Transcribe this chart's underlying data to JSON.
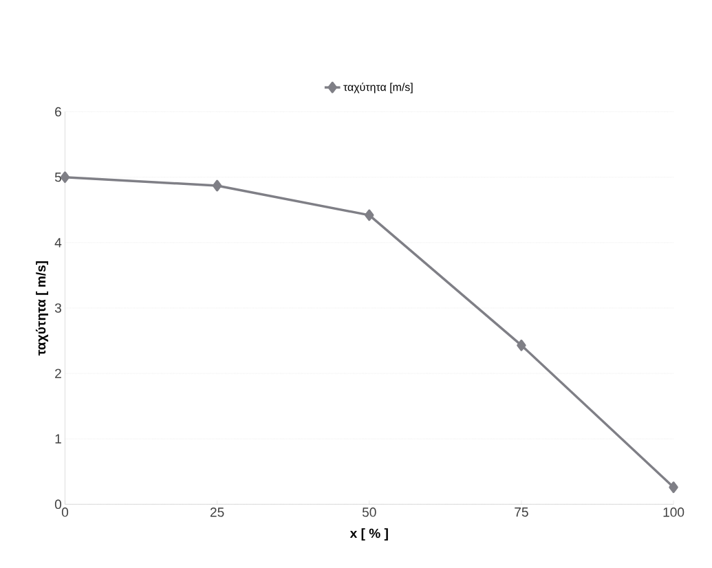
{
  "chart_data": {
    "type": "line",
    "xlabel": "x [ % ]",
    "ylabel": "ταχύτητα [ m/s]",
    "x": [
      0,
      25,
      50,
      75,
      100
    ],
    "series": [
      {
        "name": "ταχύτητα [m/s]",
        "color": "#7f7f86",
        "values": [
          5.0,
          4.87,
          4.42,
          2.43,
          0.26
        ]
      }
    ],
    "xlim": [
      0,
      100
    ],
    "xticks": [
      0,
      25,
      50,
      75,
      100
    ],
    "ylim": [
      0,
      6
    ],
    "yticks": [
      0,
      1,
      2,
      3,
      4,
      5,
      6
    ],
    "grid": "y",
    "legend": "top",
    "marker": "diamond",
    "line_style": "solid"
  }
}
